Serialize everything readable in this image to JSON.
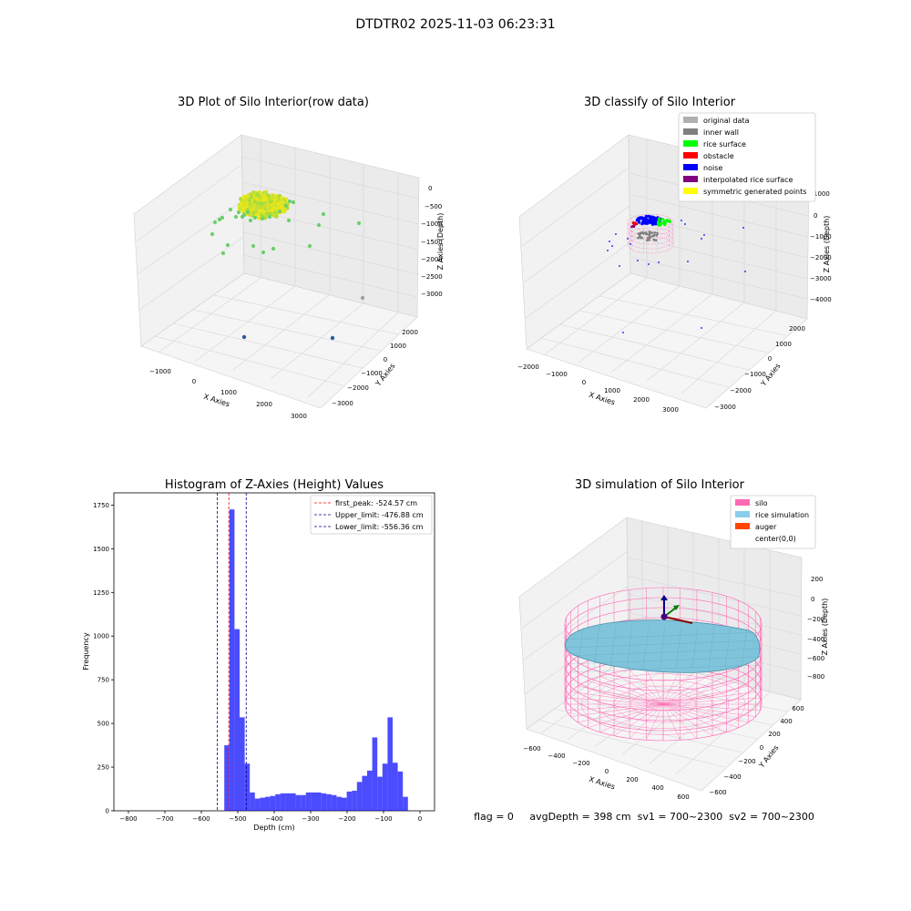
{
  "figure": {
    "suptitle": "DTDTR02 2025-11-03 06:23:31",
    "status_line": "flag = 0     avgDepth = 398 cm  sv1 = 700~2300  sv2 = 700~2300"
  },
  "panels": {
    "raw": {
      "title": "3D Plot of Silo Interior(row data)",
      "xlabel": "X Axies",
      "ylabel": "Y Axies",
      "zlabel": "Z Axies (Depth)",
      "xticks": [
        "−1000",
        "0",
        "1000",
        "2000",
        "3000"
      ],
      "yticks": [
        "−3000",
        "−2000",
        "−1000",
        "0",
        "1000",
        "2000"
      ],
      "zticks": [
        "0",
        "−500",
        "−1000",
        "−1500",
        "−2000",
        "−2500",
        "−3000"
      ]
    },
    "classify": {
      "title": "3D classify of Silo Interior",
      "xlabel": "X Axies",
      "ylabel": "Y Axies",
      "zlabel": "Z Axies (Depth)",
      "xticks": [
        "−2000",
        "−1000",
        "0",
        "1000",
        "2000",
        "3000"
      ],
      "yticks": [
        "−3000",
        "−2000",
        "−1000",
        "0",
        "1000",
        "2000"
      ],
      "zticks": [
        "1000",
        "0",
        "−1000",
        "−2000",
        "−3000",
        "−4000"
      ],
      "legend": [
        {
          "label": "original data",
          "color": "#b0b0b0"
        },
        {
          "label": "inner wall",
          "color": "#808080"
        },
        {
          "label": "rice surface",
          "color": "#00ff00"
        },
        {
          "label": "obstacle",
          "color": "#ff0000"
        },
        {
          "label": "noise",
          "color": "#0000ff"
        },
        {
          "label": "interpolated rice surface",
          "color": "#800080"
        },
        {
          "label": "symmetric generated points",
          "color": "#ffff00"
        }
      ]
    },
    "simulation": {
      "title": "3D simulation of Silo Interior",
      "xlabel": "X Axies",
      "ylabel": "Y Axies",
      "zlabel": "Z Axies (Depth)",
      "xticks": [
        "−600",
        "−400",
        "−200",
        "0",
        "200",
        "400",
        "600"
      ],
      "yticks": [
        "−600",
        "−400",
        "−200",
        "0",
        "200",
        "400",
        "600"
      ],
      "zticks": [
        "200",
        "0",
        "−200",
        "−400",
        "−600",
        "−800"
      ],
      "legend": [
        {
          "label": "silo",
          "color": "#ff69b4"
        },
        {
          "label": "rice simulation",
          "color": "#87ceeb"
        },
        {
          "label": "auger",
          "color": "#ff4500"
        },
        {
          "label": "center(0,0)",
          "color": "#ffffff"
        }
      ]
    }
  },
  "chart_data": {
    "type": "bar",
    "title": "Histogram of Z-Axies (Height) Values",
    "xlabel": "Depth (cm)",
    "ylabel": "Frequency",
    "xlim": [
      -840,
      40
    ],
    "ylim": [
      0,
      1820
    ],
    "xticks": [
      -800,
      -700,
      -600,
      -500,
      -400,
      -300,
      -200,
      -100,
      0
    ],
    "yticks": [
      0,
      250,
      500,
      750,
      1000,
      1250,
      1500,
      1750
    ],
    "bar_color": "#0000ff",
    "bins": [
      {
        "x0": -537,
        "x1": -523,
        "value": 375
      },
      {
        "x0": -523,
        "x1": -509,
        "value": 1725
      },
      {
        "x0": -509,
        "x1": -495,
        "value": 1040
      },
      {
        "x0": -495,
        "x1": -481,
        "value": 535
      },
      {
        "x0": -481,
        "x1": -467,
        "value": 270
      },
      {
        "x0": -467,
        "x1": -453,
        "value": 105
      },
      {
        "x0": -453,
        "x1": -439,
        "value": 70
      },
      {
        "x0": -439,
        "x1": -425,
        "value": 75
      },
      {
        "x0": -425,
        "x1": -411,
        "value": 80
      },
      {
        "x0": -411,
        "x1": -397,
        "value": 85
      },
      {
        "x0": -397,
        "x1": -383,
        "value": 95
      },
      {
        "x0": -383,
        "x1": -369,
        "value": 100
      },
      {
        "x0": -369,
        "x1": -355,
        "value": 100
      },
      {
        "x0": -355,
        "x1": -341,
        "value": 100
      },
      {
        "x0": -341,
        "x1": -327,
        "value": 90
      },
      {
        "x0": -327,
        "x1": -313,
        "value": 90
      },
      {
        "x0": -313,
        "x1": -299,
        "value": 105
      },
      {
        "x0": -299,
        "x1": -285,
        "value": 105
      },
      {
        "x0": -285,
        "x1": -271,
        "value": 105
      },
      {
        "x0": -271,
        "x1": -257,
        "value": 100
      },
      {
        "x0": -257,
        "x1": -243,
        "value": 95
      },
      {
        "x0": -243,
        "x1": -229,
        "value": 90
      },
      {
        "x0": -229,
        "x1": -215,
        "value": 80
      },
      {
        "x0": -215,
        "x1": -201,
        "value": 75
      },
      {
        "x0": -201,
        "x1": -187,
        "value": 110
      },
      {
        "x0": -187,
        "x1": -173,
        "value": 115
      },
      {
        "x0": -173,
        "x1": -159,
        "value": 165
      },
      {
        "x0": -159,
        "x1": -145,
        "value": 200
      },
      {
        "x0": -145,
        "x1": -131,
        "value": 230
      },
      {
        "x0": -131,
        "x1": -117,
        "value": 420
      },
      {
        "x0": -117,
        "x1": -103,
        "value": 195
      },
      {
        "x0": -103,
        "x1": -89,
        "value": 270
      },
      {
        "x0": -89,
        "x1": -75,
        "value": 535
      },
      {
        "x0": -75,
        "x1": -61,
        "value": 275
      },
      {
        "x0": -61,
        "x1": -47,
        "value": 225
      },
      {
        "x0": -47,
        "x1": -33,
        "value": 80
      }
    ],
    "reference_lines": [
      {
        "label": "first_peak: -524.57 cm",
        "value": -524.57,
        "color": "#ff0000"
      },
      {
        "label": "Upper_limit: -476.88 cm",
        "value": -476.88,
        "color": "#00008b"
      },
      {
        "label": "Lower_limit: -556.36 cm",
        "value": -556.36,
        "color": "#00008b"
      }
    ]
  }
}
